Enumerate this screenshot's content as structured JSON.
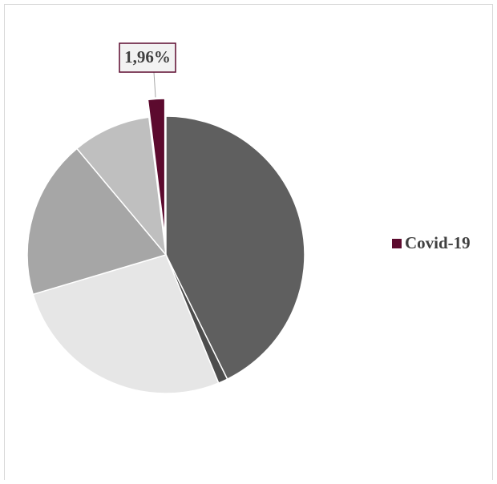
{
  "chart_data": {
    "type": "pie",
    "categories": [
      null,
      null,
      null,
      null,
      null,
      "Covid-19"
    ],
    "values": [
      42.7,
      1.1,
      26.6,
      18.5,
      9.14,
      1.96
    ],
    "value_labels": [
      null,
      null,
      null,
      null,
      null,
      "1,96%"
    ],
    "colors": [
      "#5f5f5f",
      "#4d4d4d",
      "#e6e6e6",
      "#a6a6a6",
      "#bfbfbf",
      "#5c0a2e"
    ],
    "exploded": [
      false,
      false,
      false,
      false,
      false,
      true
    ],
    "legend": "right"
  }
}
